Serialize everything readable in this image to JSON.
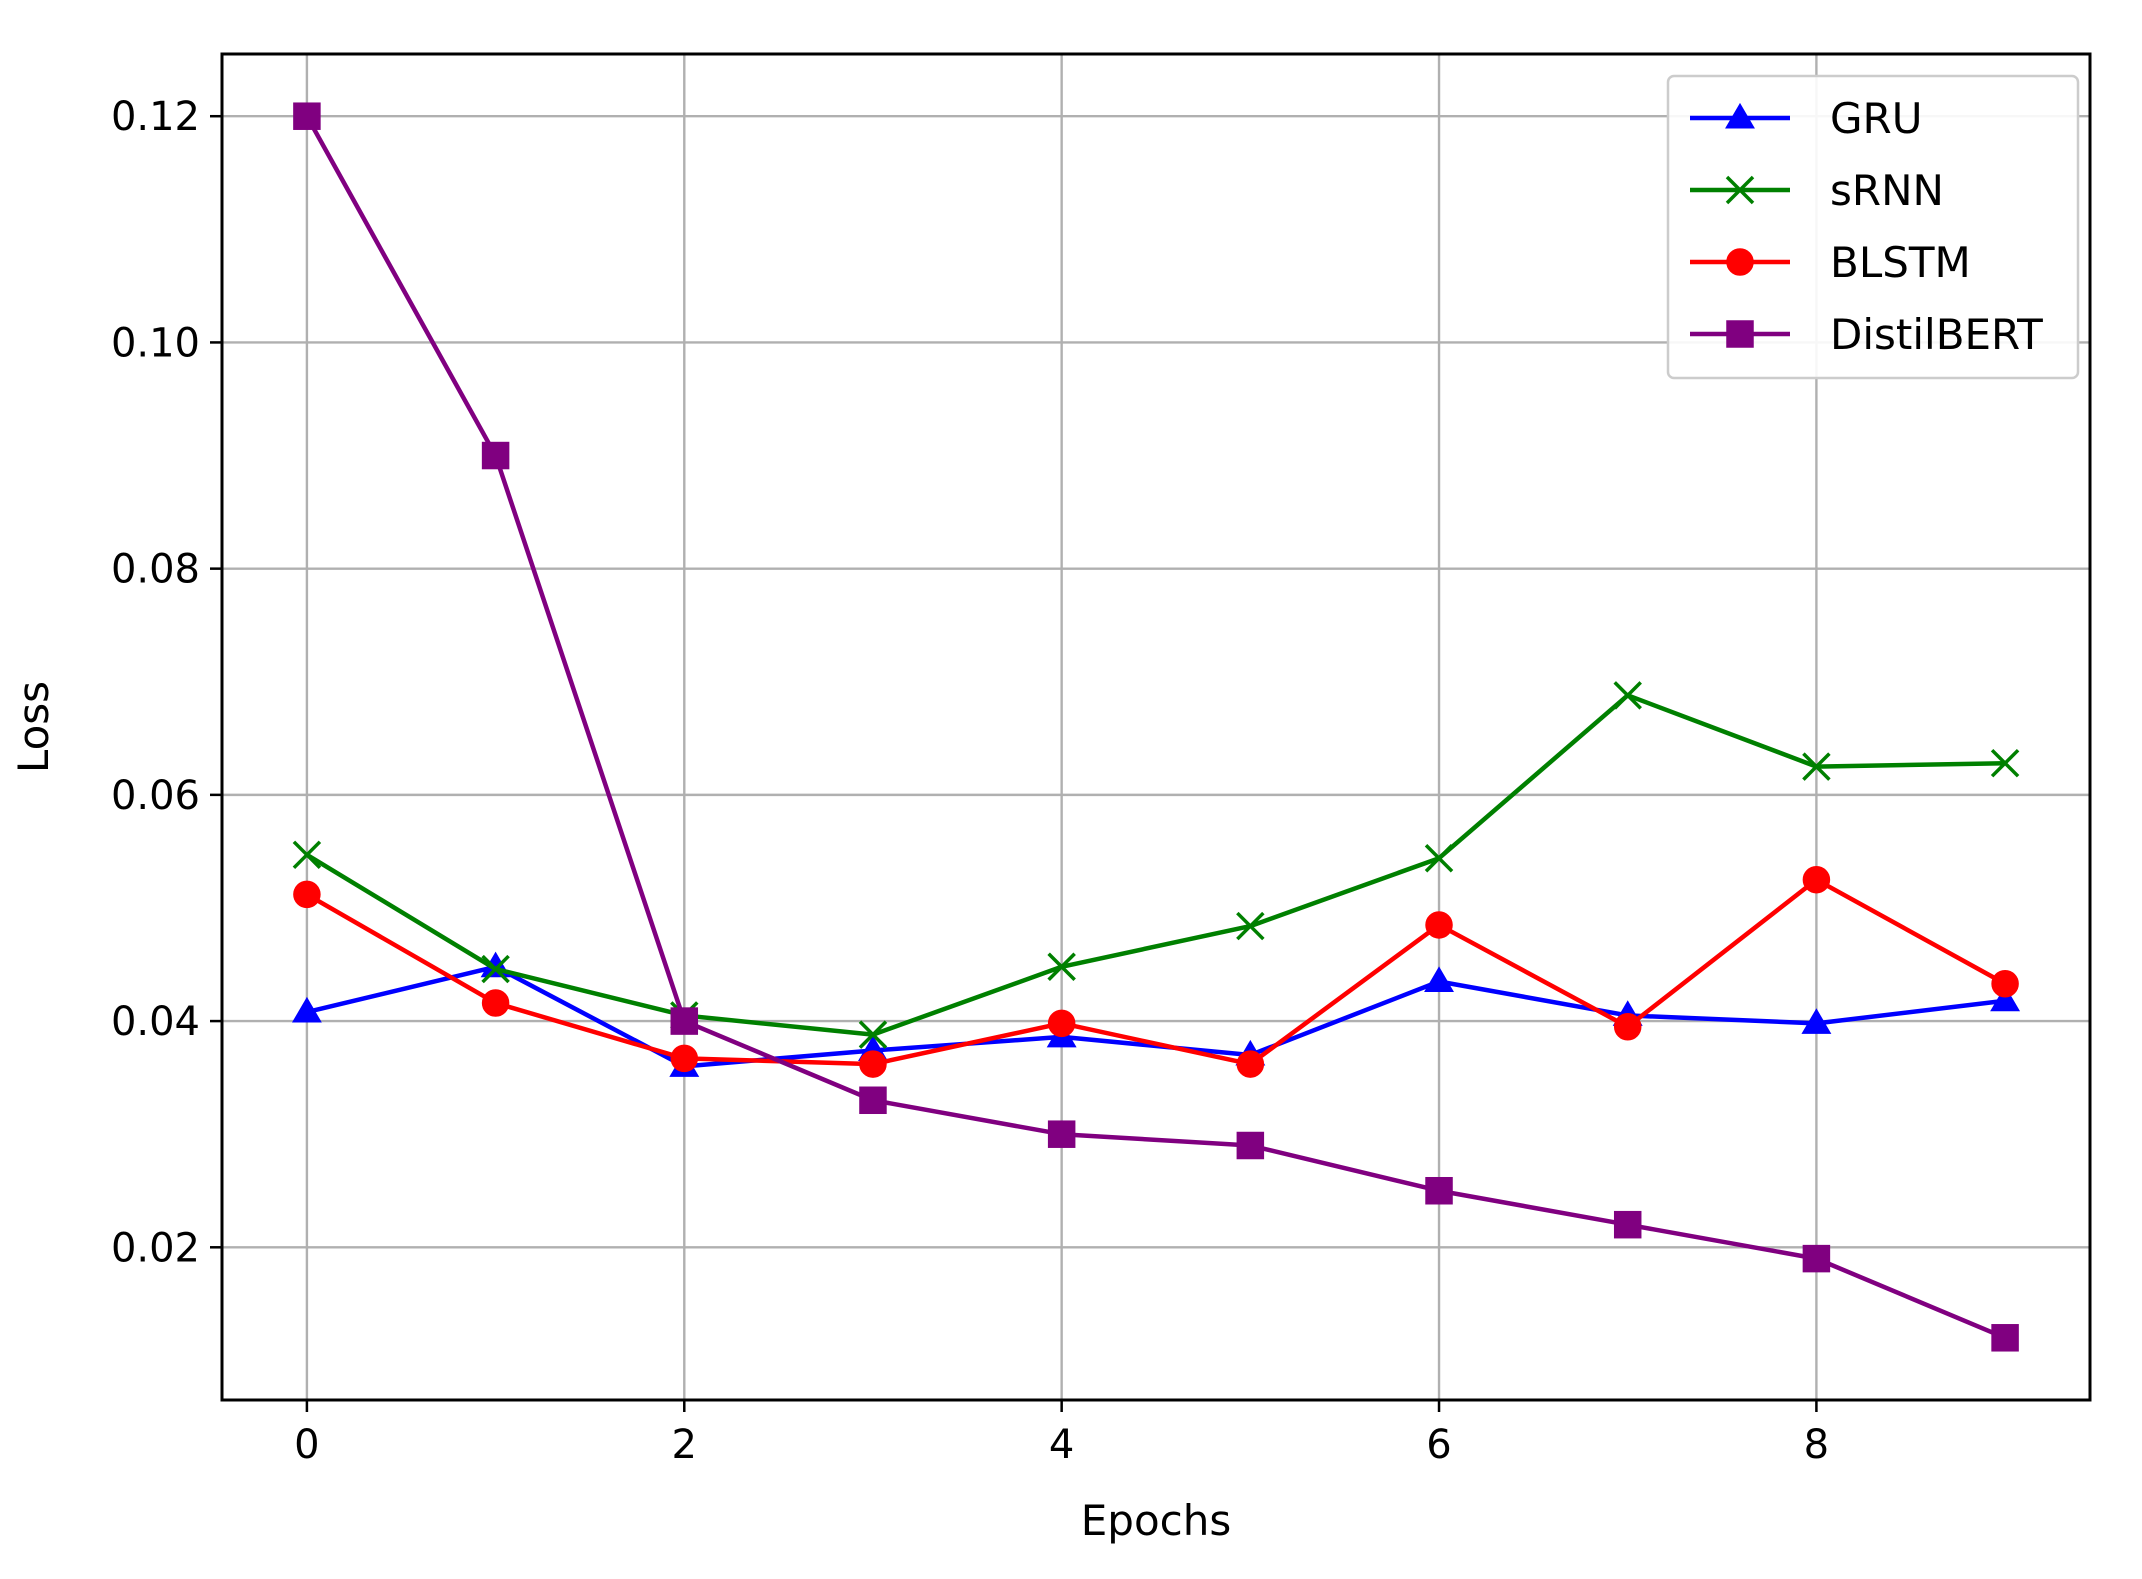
{
  "chart_data": {
    "type": "line",
    "title": "",
    "xlabel": "Epochs",
    "ylabel": "Loss",
    "x": [
      0,
      1,
      2,
      3,
      4,
      5,
      6,
      7,
      8,
      9
    ],
    "xlim": [
      -0.45,
      9.45
    ],
    "ylim": [
      0.0065,
      0.1255
    ],
    "xticks": [
      0,
      2,
      4,
      6,
      8
    ],
    "xtick_labels": [
      "0",
      "2",
      "4",
      "6",
      "8"
    ],
    "yticks": [
      0.02,
      0.04,
      0.06,
      0.08,
      0.1,
      0.12
    ],
    "ytick_labels": [
      "0.02",
      "0.04",
      "0.06",
      "0.08",
      "0.10",
      "0.12"
    ],
    "grid": true,
    "legend_position": "top-right",
    "series": [
      {
        "name": "GRU",
        "color": "#0000ff",
        "marker": "triangle",
        "values": [
          0.0408,
          0.0448,
          0.036,
          0.0374,
          0.0386,
          0.037,
          0.0435,
          0.0405,
          0.0398,
          0.0418
        ]
      },
      {
        "name": "sRNN",
        "color": "#008000",
        "marker": "x",
        "values": [
          0.0547,
          0.0446,
          0.0405,
          0.0388,
          0.0448,
          0.0484,
          0.0544,
          0.0688,
          0.0625,
          0.0628
        ]
      },
      {
        "name": "BLSTM",
        "color": "#ff0000",
        "marker": "circle",
        "values": [
          0.0512,
          0.0416,
          0.0367,
          0.0362,
          0.0398,
          0.0362,
          0.0485,
          0.0395,
          0.0525,
          0.0433
        ]
      },
      {
        "name": "DistilBERT",
        "color": "#800080",
        "marker": "square",
        "values": [
          0.12,
          0.09,
          0.04,
          0.033,
          0.03,
          0.029,
          0.025,
          0.022,
          0.019,
          0.012
        ]
      }
    ]
  }
}
